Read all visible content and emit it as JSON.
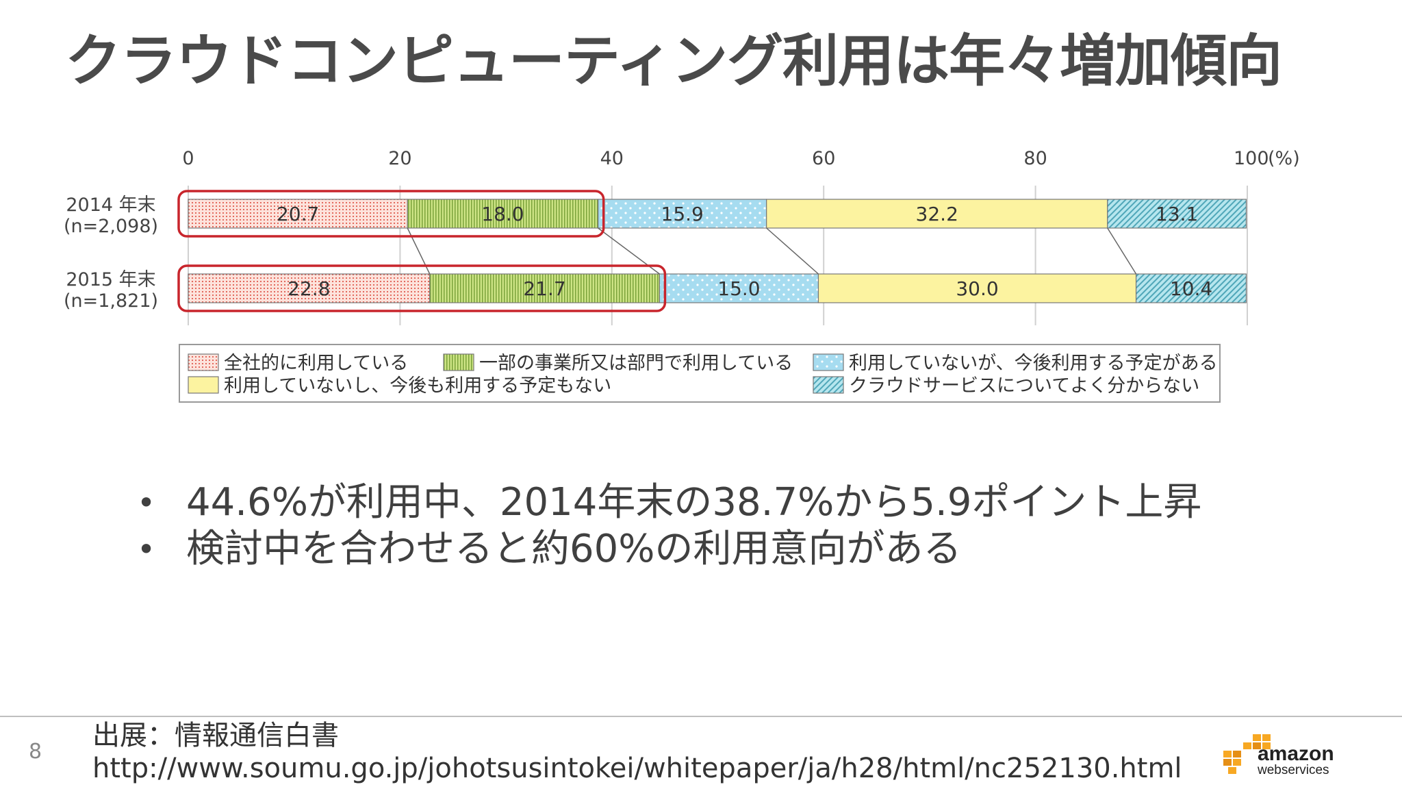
{
  "slide": {
    "title": "クラウドコンピューティング利用は年々増加傾向",
    "page_number": "8",
    "bullets": [
      "44.6%が利用中、2014年末の38.7%から5.9ポイント上昇",
      "検討中を合わせると約60%の利用意向がある"
    ],
    "source_line1": "出展：情報通信白書",
    "source_line2": "http://www.soumu.go.jp/johotsusintokei/whitepaper/ja/h28/html/nc252130.html",
    "logo": {
      "word": "amazon",
      "sub": "webservices"
    }
  },
  "chart_data": {
    "type": "bar",
    "orientation": "horizontal-stacked",
    "x_ticks": [
      "0",
      "20",
      "40",
      "60",
      "80",
      "100"
    ],
    "x_unit": "(%)",
    "xlim": [
      0,
      100
    ],
    "grid": true,
    "rows": [
      {
        "label_line1": "2014 年末",
        "label_line2": "(n=2,098)",
        "values": [
          20.7,
          18.0,
          15.9,
          32.2,
          13.1
        ],
        "highlight_first": 2
      },
      {
        "label_line1": "2015 年末",
        "label_line2": "(n=1,821)",
        "values": [
          22.8,
          21.7,
          15.0,
          30.0,
          10.4
        ],
        "highlight_first": 2
      }
    ],
    "series": [
      {
        "name": "全社的に利用している",
        "color": "#f4a89a",
        "pattern": "dots-red"
      },
      {
        "name": "一部の事業所又は部門で利用している",
        "color": "#c4dc7a",
        "pattern": "vertical-lines"
      },
      {
        "name": "利用していないが、今後利用する予定がある",
        "color": "#a6dcf0",
        "pattern": "white-dots"
      },
      {
        "name": "利用していないし、今後も利用する予定もない",
        "color": "#fcf3a0",
        "pattern": "solid"
      },
      {
        "name": "クラウドサービスについてよく分からない",
        "color": "#a0dce6",
        "pattern": "diagonal"
      }
    ],
    "legend_position": "bottom",
    "highlight_color": "#c8252c"
  }
}
